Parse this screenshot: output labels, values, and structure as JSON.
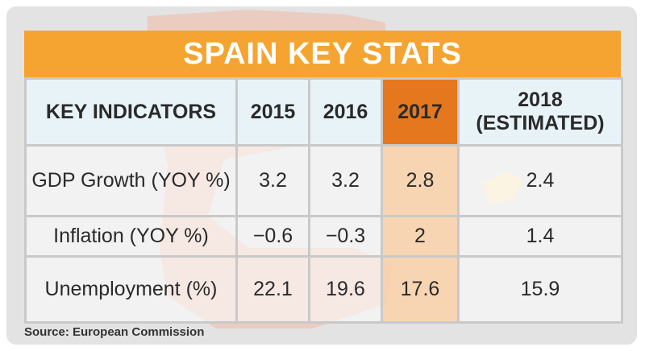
{
  "title": "SPAIN KEY STATS",
  "table": {
    "header": [
      "KEY INDICATORS",
      "2015",
      "2016",
      "2017",
      "2018 (ESTIMATED)"
    ],
    "rows": [
      [
        "GDP Growth (YOY %)",
        "3.2",
        "3.2",
        "2.8",
        "2.4"
      ],
      [
        "Inflation (YOY %)",
        "−0.6",
        "−0.3",
        "2",
        "1.4"
      ],
      [
        "Unemployment (%)",
        "22.1",
        "19.6",
        "17.6",
        "15.9"
      ]
    ]
  },
  "source": "Source: European Commission"
}
